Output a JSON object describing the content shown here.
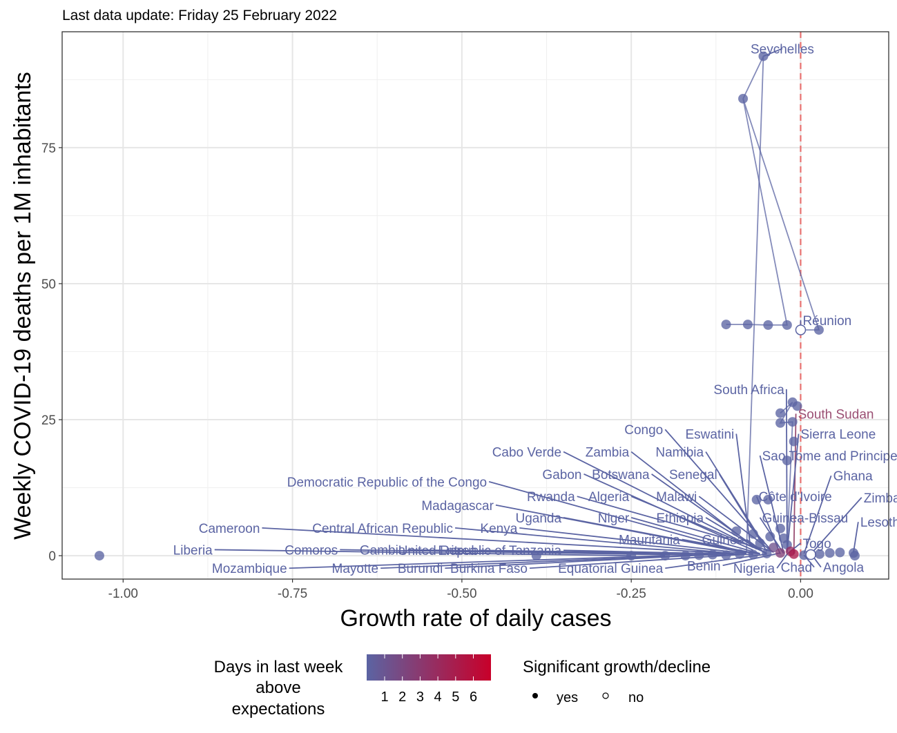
{
  "chart_data": {
    "type": "scatter",
    "subtitle": "Last data update: Friday 25 February 2022",
    "xlabel": "Growth rate of daily cases",
    "ylabel": "Weekly COVID-19 deaths per 1M inhabitants",
    "xlim": [
      -1.09,
      0.13
    ],
    "ylim": [
      -4.3,
      96.3
    ],
    "x_ticks": [
      {
        "value": -1.0,
        "label": "-1.00"
      },
      {
        "value": -0.75,
        "label": "-0.75"
      },
      {
        "value": -0.5,
        "label": "-0.50"
      },
      {
        "value": -0.25,
        "label": "-0.25"
      },
      {
        "value": 0.0,
        "label": "0.00"
      }
    ],
    "y_ticks": [
      {
        "value": 0,
        "label": "0"
      },
      {
        "value": 25,
        "label": "25"
      },
      {
        "value": 50,
        "label": "50"
      },
      {
        "value": 75,
        "label": "75"
      }
    ],
    "reference_line_x": 0,
    "grid": true,
    "colors": {
      "low": "#5b64a3",
      "high": "#c8002a",
      "reference": "#e8706e",
      "south_sudan": "#9a4f73"
    },
    "trails": [
      {
        "name": "Seychelles",
        "points": [
          [
            -0.085,
            84.0
          ],
          [
            -0.055,
            91.8
          ],
          [
            -0.08,
            0.8
          ]
        ]
      },
      {
        "name": "Réunion",
        "points": [
          [
            -0.11,
            42.5
          ],
          [
            -0.078,
            42.5
          ],
          [
            -0.048,
            42.4
          ],
          [
            -0.02,
            42.4
          ],
          [
            -0.085,
            84.0
          ],
          [
            0.027,
            41.5
          ],
          [
            0.0,
            41.5
          ]
        ]
      },
      {
        "name": "South Africa",
        "points": [
          [
            -0.03,
            26.2
          ],
          [
            -0.012,
            28.2
          ],
          [
            -0.03,
            24.4
          ],
          [
            -0.012,
            24.6
          ],
          [
            -0.02,
            1.0
          ]
        ]
      }
    ],
    "points": [
      {
        "x": -0.055,
        "y": 91.8,
        "days": 1,
        "sig": "yes"
      },
      {
        "x": -0.085,
        "y": 84.0,
        "days": 1,
        "sig": "yes"
      },
      {
        "x": -0.11,
        "y": 42.5,
        "days": 1,
        "sig": "yes"
      },
      {
        "x": -0.078,
        "y": 42.5,
        "days": 1,
        "sig": "yes"
      },
      {
        "x": -0.048,
        "y": 42.4,
        "days": 1,
        "sig": "yes"
      },
      {
        "x": -0.02,
        "y": 42.4,
        "days": 1,
        "sig": "yes"
      },
      {
        "x": 0.027,
        "y": 41.5,
        "days": 1,
        "sig": "yes"
      },
      {
        "x": 0.0,
        "y": 41.5,
        "days": 1,
        "sig": "no"
      },
      {
        "x": -0.03,
        "y": 26.2,
        "days": 1,
        "sig": "yes"
      },
      {
        "x": -0.012,
        "y": 28.2,
        "days": 1,
        "sig": "yes"
      },
      {
        "x": -0.005,
        "y": 27.5,
        "days": 1,
        "sig": "yes"
      },
      {
        "x": -0.03,
        "y": 24.4,
        "days": 1,
        "sig": "yes"
      },
      {
        "x": -0.012,
        "y": 24.6,
        "days": 1,
        "sig": "yes"
      },
      {
        "x": -0.01,
        "y": 21.0,
        "days": 1,
        "sig": "yes"
      },
      {
        "x": -0.02,
        "y": 17.5,
        "days": 1,
        "sig": "yes"
      },
      {
        "x": -0.065,
        "y": 10.3,
        "days": 1,
        "sig": "yes"
      },
      {
        "x": -0.048,
        "y": 10.3,
        "days": 1,
        "sig": "yes"
      },
      {
        "x": -0.095,
        "y": 4.5,
        "days": 1,
        "sig": "yes"
      },
      {
        "x": -0.07,
        "y": 4.0,
        "days": 1,
        "sig": "yes"
      },
      {
        "x": -0.045,
        "y": 3.5,
        "days": 1,
        "sig": "yes"
      },
      {
        "x": -0.03,
        "y": 5.0,
        "days": 1,
        "sig": "yes"
      },
      {
        "x": -0.025,
        "y": 3.2,
        "days": 1,
        "sig": "yes"
      },
      {
        "x": -0.02,
        "y": 2.0,
        "days": 1,
        "sig": "yes"
      },
      {
        "x": -0.06,
        "y": 2.3,
        "days": 1,
        "sig": "yes"
      },
      {
        "x": -0.04,
        "y": 1.5,
        "days": 2,
        "sig": "yes"
      },
      {
        "x": -0.03,
        "y": 0.5,
        "days": 3,
        "sig": "yes"
      },
      {
        "x": -0.015,
        "y": 0.8,
        "days": 4,
        "sig": "yes"
      },
      {
        "x": -0.01,
        "y": 0.3,
        "days": 5,
        "sig": "yes"
      },
      {
        "x": -0.25,
        "y": 0.0,
        "days": 1,
        "sig": "yes"
      },
      {
        "x": -0.2,
        "y": 0.0,
        "days": 1,
        "sig": "yes"
      },
      {
        "x": -0.17,
        "y": 0.0,
        "days": 1,
        "sig": "yes"
      },
      {
        "x": -0.15,
        "y": 0.1,
        "days": 1,
        "sig": "yes"
      },
      {
        "x": -0.13,
        "y": 0.2,
        "days": 1,
        "sig": "yes"
      },
      {
        "x": -0.11,
        "y": 0.1,
        "days": 1,
        "sig": "yes"
      },
      {
        "x": -0.09,
        "y": 0.3,
        "days": 1,
        "sig": "yes"
      },
      {
        "x": -0.07,
        "y": 0.2,
        "days": 1,
        "sig": "yes"
      },
      {
        "x": -0.05,
        "y": 0.4,
        "days": 1,
        "sig": "yes"
      },
      {
        "x": 0.005,
        "y": 0.1,
        "days": 1,
        "sig": "yes"
      },
      {
        "x": 0.015,
        "y": 0.2,
        "days": 1,
        "sig": "no"
      },
      {
        "x": 0.028,
        "y": 0.3,
        "days": 1,
        "sig": "yes"
      },
      {
        "x": 0.043,
        "y": 0.5,
        "days": 1,
        "sig": "yes"
      },
      {
        "x": 0.058,
        "y": 0.6,
        "days": 1,
        "sig": "yes"
      },
      {
        "x": 0.078,
        "y": 0.5,
        "days": 1,
        "sig": "yes"
      },
      {
        "x": 0.08,
        "y": 0.0,
        "days": 1,
        "sig": "yes"
      },
      {
        "x": -1.035,
        "y": 0.0,
        "days": 1,
        "sig": "yes"
      },
      {
        "x": -0.39,
        "y": 0.0,
        "days": 1,
        "sig": "yes"
      }
    ],
    "labels": [
      {
        "name": "Seychelles",
        "x": -0.055,
        "y": 91.8,
        "ax": -0.027,
        "ay": 93.2,
        "anchor": "middle"
      },
      {
        "name": "Réunion",
        "x": 0.0,
        "y": 41.5,
        "ax": 0.0,
        "ay": 43.3,
        "anchor": "start"
      },
      {
        "name": "South Africa",
        "x": -0.02,
        "y": 1.0,
        "ax": -0.021,
        "ay": 30.6,
        "anchor": "end"
      },
      {
        "name": "South Sudan",
        "x": -0.01,
        "y": 0.3,
        "ax": -0.007,
        "ay": 26.1,
        "anchor": "start"
      },
      {
        "name": "Congo",
        "x": -0.045,
        "y": 1.2,
        "ax": -0.2,
        "ay": 23.2,
        "anchor": "end"
      },
      {
        "name": "Eswatini",
        "x": -0.075,
        "y": 2.5,
        "ax": -0.095,
        "ay": 22.4,
        "anchor": "end"
      },
      {
        "name": "Sierra Leone",
        "x": -0.02,
        "y": 0.6,
        "ax": -0.003,
        "ay": 22.4,
        "anchor": "start"
      },
      {
        "name": "Cabo Verde",
        "x": -0.07,
        "y": 1.5,
        "ax": -0.35,
        "ay": 19.1,
        "anchor": "end"
      },
      {
        "name": "Zambia",
        "x": -0.065,
        "y": 1.2,
        "ax": -0.25,
        "ay": 19.1,
        "anchor": "end"
      },
      {
        "name": "Namibia",
        "x": -0.055,
        "y": 2.2,
        "ax": -0.14,
        "ay": 19.1,
        "anchor": "end"
      },
      {
        "name": "Sao Tome and Principe",
        "x": -0.025,
        "y": 0.5,
        "ax": -0.06,
        "ay": 18.4,
        "anchor": "start"
      },
      {
        "name": "Gabon",
        "x": -0.07,
        "y": 1.0,
        "ax": -0.32,
        "ay": 15.0,
        "anchor": "end"
      },
      {
        "name": "Botswana",
        "x": -0.06,
        "y": 1.0,
        "ax": -0.22,
        "ay": 15.0,
        "anchor": "end"
      },
      {
        "name": "Senegal",
        "x": -0.05,
        "y": 0.8,
        "ax": -0.12,
        "ay": 15.0,
        "anchor": "end"
      },
      {
        "name": "Ghana",
        "x": 0.005,
        "y": 0.4,
        "ax": 0.045,
        "ay": 14.7,
        "anchor": "start"
      },
      {
        "name": "Democratic Republic of the Congo",
        "x": -0.08,
        "y": 0.5,
        "ax": -0.46,
        "ay": 13.6,
        "anchor": "end"
      },
      {
        "name": "Rwanda",
        "x": -0.04,
        "y": 0.7,
        "ax": -0.33,
        "ay": 10.9,
        "anchor": "end"
      },
      {
        "name": "Algeria",
        "x": -0.05,
        "y": 0.5,
        "ax": -0.25,
        "ay": 10.9,
        "anchor": "end"
      },
      {
        "name": "Malawi",
        "x": -0.04,
        "y": 0.6,
        "ax": -0.15,
        "ay": 10.9,
        "anchor": "end"
      },
      {
        "name": "Côte d'Ivoire",
        "x": -0.03,
        "y": 0.3,
        "ax": -0.065,
        "ay": 10.9,
        "anchor": "start"
      },
      {
        "name": "Zimbabwe",
        "x": 0.015,
        "y": 0.3,
        "ax": 0.09,
        "ay": 10.7,
        "anchor": "start"
      },
      {
        "name": "Madagascar",
        "x": -0.08,
        "y": 0.5,
        "ax": -0.45,
        "ay": 9.3,
        "anchor": "end"
      },
      {
        "name": "Uganda",
        "x": -0.07,
        "y": 0.4,
        "ax": -0.35,
        "ay": 7.0,
        "anchor": "end"
      },
      {
        "name": "Niger",
        "x": -0.06,
        "y": 0.4,
        "ax": -0.25,
        "ay": 7.0,
        "anchor": "end"
      },
      {
        "name": "Ethiopia",
        "x": -0.05,
        "y": 0.3,
        "ax": -0.14,
        "ay": 7.0,
        "anchor": "end"
      },
      {
        "name": "Guinea-Bissau",
        "x": -0.025,
        "y": 0.4,
        "ax": -0.06,
        "ay": 7.0,
        "anchor": "start"
      },
      {
        "name": "Lesotho",
        "x": 0.078,
        "y": 0.6,
        "ax": 0.085,
        "ay": 6.2,
        "anchor": "start"
      },
      {
        "name": "Cameroon",
        "x": -0.1,
        "y": 0.4,
        "ax": -0.795,
        "ay": 5.1,
        "anchor": "end"
      },
      {
        "name": "Central African Republic",
        "x": -0.09,
        "y": 0.3,
        "ax": -0.51,
        "ay": 5.1,
        "anchor": "end"
      },
      {
        "name": "Kenya",
        "x": -0.08,
        "y": 0.4,
        "ax": -0.415,
        "ay": 5.1,
        "anchor": "end"
      },
      {
        "name": "Mauritania",
        "x": -0.06,
        "y": 0.3,
        "ax": -0.175,
        "ay": 3.0,
        "anchor": "end"
      },
      {
        "name": "Guinea",
        "x": -0.05,
        "y": 0.3,
        "ax": -0.08,
        "ay": 3.0,
        "anchor": "end"
      },
      {
        "name": "Togo",
        "x": -0.02,
        "y": 0.3,
        "ax": 0.0,
        "ay": 2.3,
        "anchor": "start"
      },
      {
        "name": "Liberia",
        "x": -0.25,
        "y": 0.0,
        "ax": -0.865,
        "ay": 1.1,
        "anchor": "end"
      },
      {
        "name": "Comoros",
        "x": -0.15,
        "y": 0.1,
        "ax": -0.68,
        "ay": 1.1,
        "anchor": "end"
      },
      {
        "name": "Gambia",
        "x": -0.11,
        "y": 0.1,
        "ax": -0.58,
        "ay": 1.1,
        "anchor": "end"
      },
      {
        "name": "Eritrea",
        "x": -0.09,
        "y": 0.3,
        "ax": -0.475,
        "ay": 1.0,
        "anchor": "end"
      },
      {
        "name": "United Republic of Tanzania",
        "x": -0.07,
        "y": 0.2,
        "ax": -0.35,
        "ay": 1.0,
        "anchor": "end"
      },
      {
        "name": "Mozambique",
        "x": -0.2,
        "y": 0.0,
        "ax": -0.755,
        "ay": -2.3,
        "anchor": "end"
      },
      {
        "name": "Mayotte",
        "x": -0.17,
        "y": 0.0,
        "ax": -0.62,
        "ay": -2.3,
        "anchor": "end"
      },
      {
        "name": "Burundi",
        "x": -0.13,
        "y": 0.2,
        "ax": -0.525,
        "ay": -2.3,
        "anchor": "end"
      },
      {
        "name": "Burkina Faso",
        "x": -0.09,
        "y": 0.2,
        "ax": -0.4,
        "ay": -2.3,
        "anchor": "end"
      },
      {
        "name": "Equatorial Guinea",
        "x": -0.05,
        "y": 0.3,
        "ax": -0.2,
        "ay": -2.3,
        "anchor": "end"
      },
      {
        "name": "Benin",
        "x": -0.03,
        "y": 0.5,
        "ax": -0.115,
        "ay": -1.8,
        "anchor": "end"
      },
      {
        "name": "Nigeria",
        "x": -0.02,
        "y": 0.3,
        "ax": -0.035,
        "ay": -2.3,
        "anchor": "end"
      },
      {
        "name": "Chad",
        "x": 0.005,
        "y": 0.1,
        "ax": 0.02,
        "ay": -2.1,
        "anchor": "end"
      },
      {
        "name": "Angola",
        "x": 0.015,
        "y": 0.4,
        "ax": 0.03,
        "ay": -2.1,
        "anchor": "start"
      }
    ],
    "legend": {
      "color_title": [
        "Days in last week",
        "above",
        "expectations"
      ],
      "color_ticks": [
        "1",
        "2",
        "3",
        "4",
        "5",
        "6"
      ],
      "shape_title": "Significant growth/decline",
      "shape_items": [
        "yes",
        "no"
      ]
    }
  }
}
